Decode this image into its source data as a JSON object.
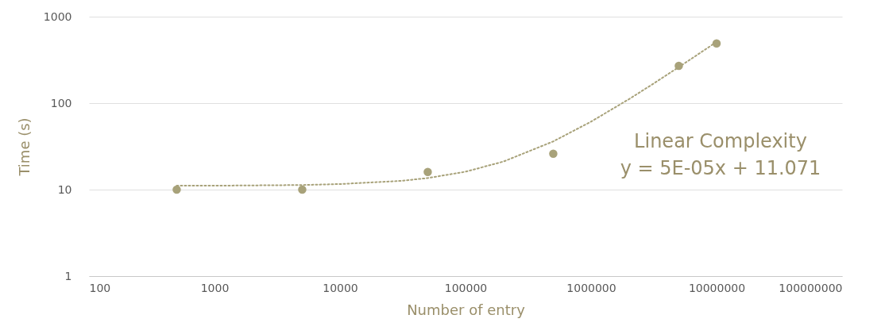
{
  "chart_data": {
    "type": "scatter",
    "xlabel": "Number of entry",
    "ylabel": "Time (s)",
    "log": "xy",
    "grid": "y",
    "xlim": [
      100,
      100000000
    ],
    "xticks": [
      100,
      1000,
      10000,
      100000,
      1000000,
      10000000,
      100000000
    ],
    "ylim": [
      1,
      1000
    ],
    "yticks": [
      1,
      10,
      100,
      1000
    ],
    "annotations": [
      "Linear Complexity",
      "y = 5E-05x + 11.071"
    ],
    "series": [
      {
        "type": "line",
        "color": "#a8a27a",
        "line_style": "dotted",
        "marker": "none",
        "x": [
          500,
          1000,
          5000,
          10000,
          30000,
          50000,
          100000,
          200000,
          500000,
          1000000,
          2000000,
          3000000,
          5000000,
          7000000,
          10000000
        ],
        "values": [
          11.1,
          11.1,
          11.3,
          11.6,
          12.6,
          13.6,
          16.1,
          21.1,
          36.1,
          61.1,
          111,
          161,
          261,
          361,
          511
        ]
      },
      {
        "color": "#a8a27a",
        "marker": "circle",
        "x": [
          500,
          5000,
          50000,
          500000,
          5000000,
          10000000
        ],
        "values": [
          10,
          10,
          16,
          26,
          270,
          490
        ]
      }
    ]
  }
}
